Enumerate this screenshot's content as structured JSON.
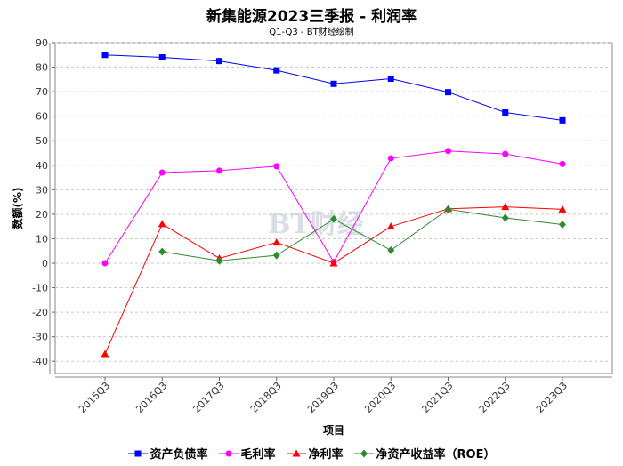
{
  "chart_data": {
    "type": "line",
    "title": "新集能源2023三季报 - 利润率",
    "subtitle": "Q1-Q3 - BT财经绘制",
    "xlabel": "项目",
    "ylabel": "数额(%)",
    "watermark": "BT财经",
    "ylim": [
      -45,
      90
    ],
    "yticks": [
      -40,
      -30,
      -20,
      -10,
      0,
      10,
      20,
      30,
      40,
      50,
      60,
      70,
      80,
      90
    ],
    "categories": [
      "2015Q3",
      "2016Q3",
      "2017Q3",
      "2018Q3",
      "2019Q3",
      "2020Q3",
      "2021Q3",
      "2022Q3",
      "2023Q3"
    ],
    "grid": true,
    "legend_position": "bottom",
    "series": [
      {
        "name": "资产负债率",
        "color": "#0000ff",
        "marker": "square",
        "values": [
          85,
          84,
          82.5,
          78.7,
          73.2,
          75.3,
          69.8,
          61.5,
          58.3
        ]
      },
      {
        "name": "毛利率",
        "color": "#ff00ff",
        "marker": "circle",
        "values": [
          0,
          37,
          37.8,
          39.6,
          0.5,
          42.8,
          45.8,
          44.6,
          40.5
        ]
      },
      {
        "name": "净利率",
        "color": "#ff0000",
        "marker": "triangle",
        "values": [
          -37,
          16,
          2,
          8.5,
          0,
          15,
          22.2,
          23,
          22
        ]
      },
      {
        "name": "净资产收益率（ROE）",
        "color": "#2e8b2e",
        "marker": "diamond",
        "values": [
          null,
          4.7,
          1,
          3.2,
          18,
          5.3,
          22,
          18.5,
          15.8
        ]
      }
    ]
  }
}
